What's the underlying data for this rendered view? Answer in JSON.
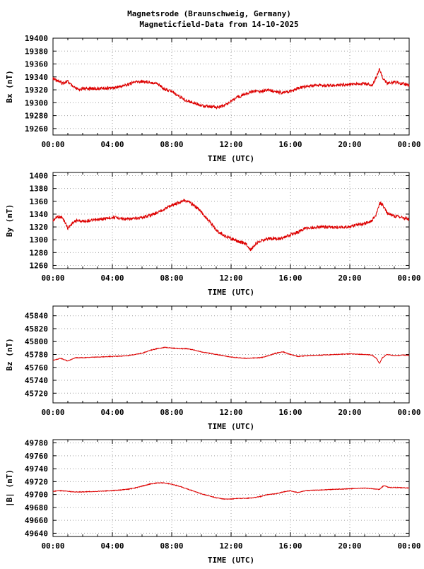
{
  "title_line1": "Magnetsrode (Braunschweig, Germany)",
  "title_line2": "Magneticfield-Data from 14-10-2025",
  "line_color": "#dd0000",
  "grid_color": "#a0a0a0",
  "chart_data": [
    {
      "type": "line",
      "ylabel": "Bx (nT)",
      "xlabel": "TIME (UTC)",
      "xlim": [
        0,
        24
      ],
      "ylim": [
        19250,
        19400
      ],
      "yticks": [
        19260,
        19280,
        19300,
        19320,
        19340,
        19360,
        19380,
        19400
      ],
      "xtick_labels": [
        "00:00",
        "04:00",
        "08:00",
        "12:00",
        "16:00",
        "20:00",
        "00:00"
      ],
      "grid": true,
      "series": [
        {
          "x": [
            0,
            0.3,
            0.6,
            1.0,
            1.3,
            1.7,
            2.0,
            3.0,
            4.0,
            4.5,
            5.0,
            5.5,
            6.0,
            6.5,
            7.0,
            7.3,
            7.6,
            8.0,
            8.5,
            9.0,
            9.5,
            10.0,
            10.5,
            11.0,
            11.5,
            12.0,
            12.5,
            13.0,
            13.5,
            14.0,
            14.5,
            15.0,
            15.5,
            16.0,
            16.5,
            17.0,
            18.0,
            19.0,
            20.0,
            21.0,
            21.5,
            21.8,
            22.0,
            22.2,
            22.5,
            23.0,
            23.5,
            24.0
          ],
          "values": [
            19337,
            19335,
            19330,
            19333,
            19325,
            19320,
            19322,
            19322,
            19323,
            19325,
            19328,
            19332,
            19333,
            19332,
            19330,
            19325,
            19320,
            19318,
            19310,
            19303,
            19300,
            19296,
            19294,
            19293,
            19295,
            19303,
            19309,
            19314,
            19318,
            19318,
            19320,
            19317,
            19315,
            19318,
            19322,
            19325,
            19327,
            19327,
            19328,
            19330,
            19327,
            19340,
            19353,
            19340,
            19330,
            19332,
            19330,
            19327
          ]
        }
      ]
    },
    {
      "type": "line",
      "ylabel": "By (nT)",
      "xlabel": "TIME (UTC)",
      "xlim": [
        0,
        24
      ],
      "ylim": [
        1255,
        1405
      ],
      "yticks": [
        1260,
        1280,
        1300,
        1320,
        1340,
        1360,
        1380,
        1400
      ],
      "xtick_labels": [
        "00:00",
        "04:00",
        "08:00",
        "12:00",
        "16:00",
        "20:00",
        "00:00"
      ],
      "grid": true,
      "series": [
        {
          "x": [
            0,
            0.3,
            0.6,
            0.8,
            1.0,
            1.3,
            1.6,
            2.0,
            3.0,
            4.0,
            4.5,
            5.0,
            5.5,
            6.0,
            6.5,
            7.0,
            7.5,
            8.0,
            8.5,
            8.8,
            9.2,
            9.6,
            10.0,
            10.5,
            11.0,
            11.5,
            12.0,
            12.5,
            13.0,
            13.3,
            13.6,
            14.0,
            14.5,
            15.0,
            15.5,
            16.0,
            16.5,
            17.0,
            18.0,
            19.0,
            19.5,
            20.0,
            20.5,
            21.0,
            21.5,
            21.8,
            22.0,
            22.2,
            22.5,
            23.0,
            23.5,
            24.0
          ],
          "values": [
            1330,
            1336,
            1335,
            1328,
            1318,
            1326,
            1330,
            1329,
            1331,
            1335,
            1334,
            1332,
            1333,
            1335,
            1338,
            1342,
            1348,
            1354,
            1358,
            1362,
            1358,
            1352,
            1343,
            1330,
            1315,
            1307,
            1302,
            1297,
            1294,
            1284,
            1292,
            1299,
            1302,
            1302,
            1302,
            1308,
            1312,
            1318,
            1320,
            1319,
            1320,
            1320,
            1323,
            1325,
            1330,
            1340,
            1357,
            1355,
            1342,
            1337,
            1335,
            1332
          ]
        }
      ]
    },
    {
      "type": "line",
      "ylabel": "Bz (nT)",
      "xlabel": "TIME (UTC)",
      "xlim": [
        0,
        24
      ],
      "ylim": [
        45705,
        45855
      ],
      "yticks": [
        45720,
        45740,
        45760,
        45780,
        45800,
        45820,
        45840
      ],
      "xtick_labels": [
        "00:00",
        "04:00",
        "08:00",
        "12:00",
        "16:00",
        "20:00",
        "00:00"
      ],
      "grid": true,
      "series": [
        {
          "x": [
            0,
            0.5,
            1.0,
            1.5,
            2.0,
            3.0,
            4.0,
            5.0,
            6.0,
            6.5,
            7.0,
            7.5,
            8.0,
            8.5,
            9.0,
            9.5,
            10.0,
            11.0,
            12.0,
            13.0,
            14.0,
            14.5,
            15.0,
            15.5,
            16.0,
            16.5,
            17.0,
            18.0,
            19.0,
            20.0,
            21.0,
            21.5,
            21.8,
            22.0,
            22.2,
            22.5,
            23.0,
            23.5,
            24.0
          ],
          "values": [
            45771,
            45774,
            45770,
            45775,
            45775,
            45776,
            45777,
            45778,
            45782,
            45786,
            45789,
            45791,
            45790,
            45789,
            45789,
            45787,
            45784,
            45780,
            45776,
            45774,
            45775,
            45778,
            45782,
            45784,
            45780,
            45777,
            45778,
            45779,
            45780,
            45781,
            45780,
            45779,
            45774,
            45766,
            45775,
            45780,
            45778,
            45779,
            45779
          ]
        }
      ]
    },
    {
      "type": "line",
      "ylabel": "|B| (nT)",
      "xlabel": "TIME (UTC)",
      "xlim": [
        0,
        24
      ],
      "ylim": [
        49635,
        49785
      ],
      "yticks": [
        49640,
        49660,
        49680,
        49700,
        49720,
        49740,
        49760,
        49780
      ],
      "xtick_labels": [
        "00:00",
        "04:00",
        "08:00",
        "12:00",
        "16:00",
        "20:00",
        "00:00"
      ],
      "grid": true,
      "series": [
        {
          "x": [
            0,
            0.5,
            1.0,
            1.5,
            2.0,
            3.0,
            4.0,
            5.0,
            5.5,
            6.0,
            6.5,
            7.0,
            7.5,
            8.0,
            8.5,
            9.0,
            9.5,
            10.0,
            10.5,
            11.0,
            11.5,
            12.0,
            12.5,
            13.0,
            13.5,
            14.0,
            14.5,
            15.0,
            15.5,
            16.0,
            16.5,
            17.0,
            18.0,
            19.0,
            20.0,
            21.0,
            21.5,
            22.0,
            22.3,
            22.6,
            23.0,
            24.0
          ],
          "values": [
            49705,
            49706,
            49705,
            49704,
            49704,
            49705,
            49706,
            49708,
            49710,
            49713,
            49716,
            49718,
            49718,
            49716,
            49713,
            49709,
            49705,
            49701,
            49698,
            49695,
            49693,
            49693,
            49694,
            49694,
            49695,
            49697,
            49700,
            49701,
            49704,
            49706,
            49703,
            49706,
            49707,
            49708,
            49709,
            49710,
            49709,
            49708,
            49714,
            49711,
            49711,
            49710
          ]
        }
      ]
    }
  ]
}
